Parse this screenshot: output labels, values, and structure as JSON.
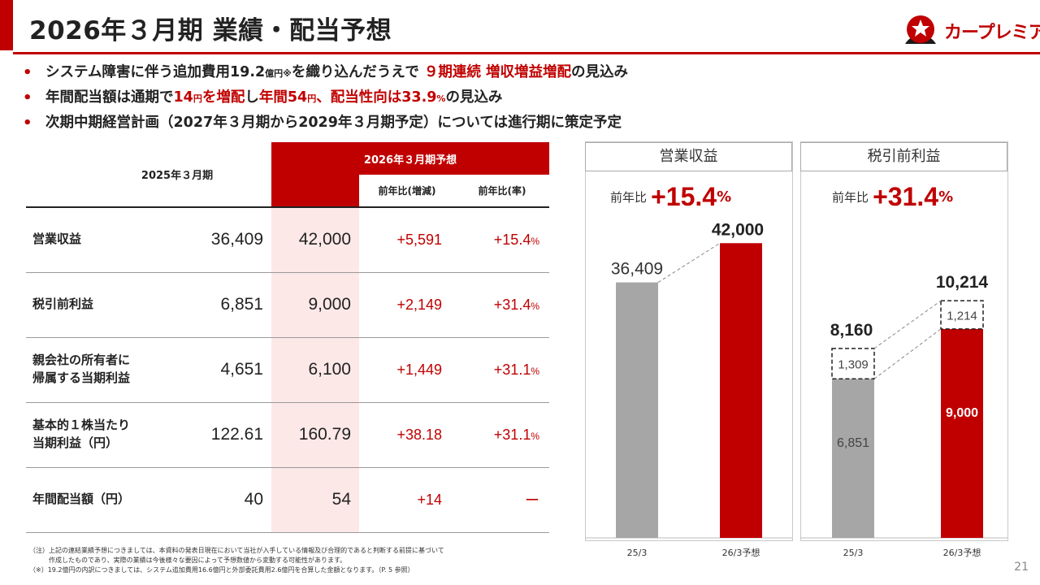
{
  "header": {
    "title": "2026年３月期 業績・配当予想",
    "logo_text": "カープレミア"
  },
  "bullets": [
    {
      "parts": [
        {
          "t": "システム障害に伴う追加費用19.2"
        },
        {
          "t": "億円※",
          "small": true
        },
        {
          "t": "を織り込んだうえで "
        },
        {
          "t": "９期連続 増収増益増配",
          "red": true
        },
        {
          "t": "の見込み"
        }
      ]
    },
    {
      "parts": [
        {
          "t": "年間配当額は通期で"
        },
        {
          "t": "14",
          "red": true
        },
        {
          "t": "円",
          "red": true,
          "small": true
        },
        {
          "t": "を増配",
          "red": true
        },
        {
          "t": "し"
        },
        {
          "t": "年間54",
          "red": true
        },
        {
          "t": "円",
          "red": true,
          "small": true
        },
        {
          "t": "、配当性向は33.9",
          "red": true
        },
        {
          "t": "%",
          "red": true,
          "small": true
        },
        {
          "t": "の見込み"
        }
      ]
    },
    {
      "parts": [
        {
          "t": "次期中期経営計画（2027年３月期から2029年３月期予定）については進行期に策定予定"
        }
      ]
    }
  ],
  "table": {
    "col_2025": "2025年３月期",
    "col_2026": "2026年３月期予想",
    "col_diff": "前年比(増減)",
    "col_rate": "前年比(率)",
    "rows": [
      {
        "label": "営業収益",
        "v2025": "36,409",
        "v2026": "42,000",
        "diff": "+5,591",
        "rate": "+15.4",
        "pct": "%"
      },
      {
        "label": "税引前利益",
        "v2025": "6,851",
        "v2026": "9,000",
        "diff": "+2,149",
        "rate": "+31.4",
        "pct": "%"
      },
      {
        "label": "親会社の所有者に\n帰属する当期利益",
        "v2025": "4,651",
        "v2026": "6,100",
        "diff": "+1,449",
        "rate": "+31.1",
        "pct": "%"
      },
      {
        "label": "基本的１株当たり\n当期利益（円）",
        "v2025": "122.61",
        "v2026": "160.79",
        "diff": "+38.18",
        "rate": "+31.1",
        "pct": "%"
      },
      {
        "label": "年間配当額（円）",
        "v2025": "40",
        "v2026": "54",
        "diff": "+14",
        "rate": "ー",
        "pct": ""
      }
    ]
  },
  "footnotes": [
    "（注）上記の連結業績予想につきましては、本資料の発表日現在において当社が入手している情報及び合理的であると判断する前提に基づいて",
    "　　　作成したものであり、実際の業績は今後様々な要因によって予想数値から変動する可能性があります。",
    "（※）19.2億円の内訳につきましては、システム追加費用16.6億円と外部委託費用2.6億円を合算した金額となります。（P. 5 参照）"
  ],
  "yoy_label": "前年比",
  "page_number": "21",
  "colors": {
    "accent": "#c00000",
    "gray_bar": "#a6a6a6",
    "highlight": "#fde8e8"
  },
  "chart_data": [
    {
      "type": "bar",
      "title": "営業収益",
      "yoy": "+15.4",
      "yoy_unit": "%",
      "categories": [
        "25/3",
        "26/3予想"
      ],
      "values": [
        36409,
        42000
      ],
      "labels": [
        "36,409",
        "42,000"
      ],
      "ylim": [
        0,
        44000
      ]
    },
    {
      "type": "bar",
      "title": "税引前利益",
      "yoy": "+31.4",
      "yoy_unit": "%",
      "categories": [
        "25/3",
        "26/3予想"
      ],
      "series": [
        {
          "name": "base",
          "values": [
            6851,
            9000
          ],
          "labels": [
            "6,851",
            "9,000"
          ]
        },
        {
          "name": "additional",
          "values": [
            1309,
            1214
          ],
          "labels": [
            "1,309",
            "1,214"
          ]
        }
      ],
      "totals": [
        8160,
        10214
      ],
      "total_labels": [
        "8,160",
        "10,214"
      ],
      "ylim": [
        0,
        13300
      ]
    }
  ]
}
